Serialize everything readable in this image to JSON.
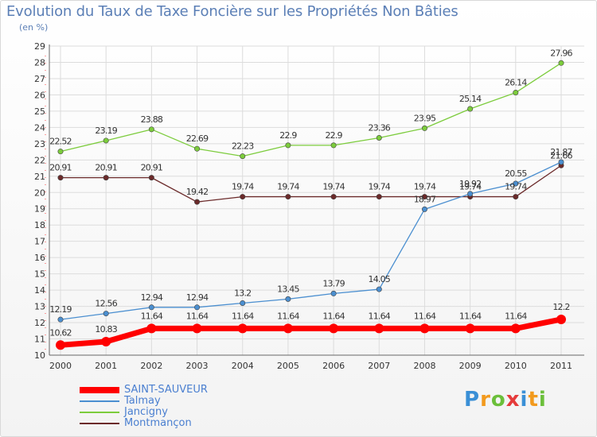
{
  "header": {
    "title": "Evolution du Taux de Taxe Foncière sur les Propriétés Non Bâties",
    "subtitle": "(en %)"
  },
  "brand": {
    "letters": [
      "P",
      "r",
      "o",
      "x",
      "i",
      "t",
      "i"
    ]
  },
  "colors": {
    "saint_sauveur": "#ff0000",
    "talmay": "#4b8fd0",
    "jancigny": "#7ccc3c",
    "montmancon": "#6b2a2a",
    "grid": "#dcdcdc",
    "title": "#5b7fb6",
    "legend_text": "#4a7fd0"
  },
  "chart_data": {
    "type": "line",
    "title": "Evolution du Taux de Taxe Foncière sur les Propriétés Non Bâties",
    "ylabel": "(en %)",
    "xlabel": "",
    "categories": [
      "2000",
      "2001",
      "2002",
      "2003",
      "2004",
      "2005",
      "2006",
      "2007",
      "2008",
      "2009",
      "2010",
      "2011"
    ],
    "ylim": [
      10,
      29
    ],
    "yticks": [
      "10",
      "11",
      "12",
      "13",
      "14",
      "15",
      "16",
      "17",
      "18",
      "19",
      "20",
      "21",
      "22",
      "23",
      "24",
      "25",
      "26",
      "27",
      "28",
      "29"
    ],
    "grid": true,
    "legend_position": "bottom",
    "series": [
      {
        "name": "SAINT-SAUVEUR",
        "key": "saint_sauveur",
        "values": [
          10.62,
          10.83,
          11.64,
          11.64,
          11.64,
          11.64,
          11.64,
          11.64,
          11.64,
          11.64,
          11.64,
          12.2
        ],
        "labels": [
          "10.62",
          "10.83",
          "11.64",
          "11.64",
          "11.64",
          "11.64",
          "11.64",
          "11.64",
          "11.64",
          "11.64",
          "11.64",
          "12.2"
        ]
      },
      {
        "name": "Talmay",
        "key": "talmay",
        "values": [
          12.19,
          12.56,
          12.94,
          12.94,
          13.2,
          13.45,
          13.79,
          14.05,
          18.97,
          19.92,
          20.55,
          21.87
        ],
        "labels": [
          "12.19",
          "12.56",
          "12.94",
          "12.94",
          "13.2",
          "13.45",
          "13.79",
          "14.05",
          "18.97",
          "19.92",
          "20.55",
          "21.87"
        ]
      },
      {
        "name": "Jancigny",
        "key": "jancigny",
        "values": [
          22.52,
          23.19,
          23.88,
          22.69,
          22.23,
          22.9,
          22.9,
          23.36,
          23.95,
          25.14,
          26.14,
          27.96
        ],
        "labels": [
          "22.52",
          "23.19",
          "23.88",
          "22.69",
          "22.23",
          "22.9",
          "22.9",
          "23.36",
          "23.95",
          "25.14",
          "26.14",
          "27.96"
        ]
      },
      {
        "name": "Montmançon",
        "key": "montmancon",
        "values": [
          20.91,
          20.91,
          20.91,
          19.42,
          19.74,
          19.74,
          19.74,
          19.74,
          19.74,
          19.74,
          19.74,
          21.66
        ],
        "labels": [
          "20.91",
          "20.91",
          "20.91",
          "19.42",
          "19.74",
          "19.74",
          "19.74",
          "19.74",
          "19.74",
          "19.74",
          "19.74",
          "21.66"
        ]
      }
    ]
  }
}
